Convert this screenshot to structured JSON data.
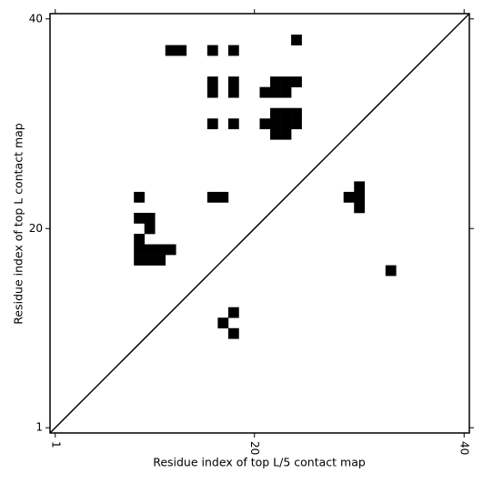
{
  "chart_data": {
    "type": "contact-map",
    "xlabel": "Residue index of top L/5 contact map",
    "ylabel": "Residue index of top L contact map",
    "x": [
      24,
      12,
      13,
      16,
      18,
      16,
      18,
      22,
      23,
      24,
      16,
      18,
      21,
      22,
      23,
      22,
      23,
      24,
      16,
      18,
      21,
      22,
      23,
      24,
      22,
      23,
      9,
      16,
      17,
      9,
      10,
      10,
      9,
      9,
      10,
      11,
      12,
      9,
      10,
      11,
      30,
      29,
      30,
      30,
      33,
      18,
      17,
      18
    ],
    "values": [
      38,
      37,
      37,
      37,
      37,
      34,
      34,
      34,
      34,
      34,
      33,
      33,
      33,
      33,
      33,
      31,
      31,
      31,
      30,
      30,
      30,
      30,
      30,
      30,
      29,
      29,
      23,
      23,
      23,
      21,
      21,
      20,
      19,
      18,
      18,
      18,
      18,
      17,
      17,
      17,
      24,
      23,
      23,
      22,
      16,
      12,
      11,
      10
    ],
    "color": "#000000",
    "xlim": [
      0.5,
      40.5
    ],
    "ylim": [
      0.5,
      40.5
    ],
    "xticks": [
      1,
      20,
      40
    ],
    "yticks": [
      1,
      20,
      40
    ],
    "diagonal": true
  }
}
